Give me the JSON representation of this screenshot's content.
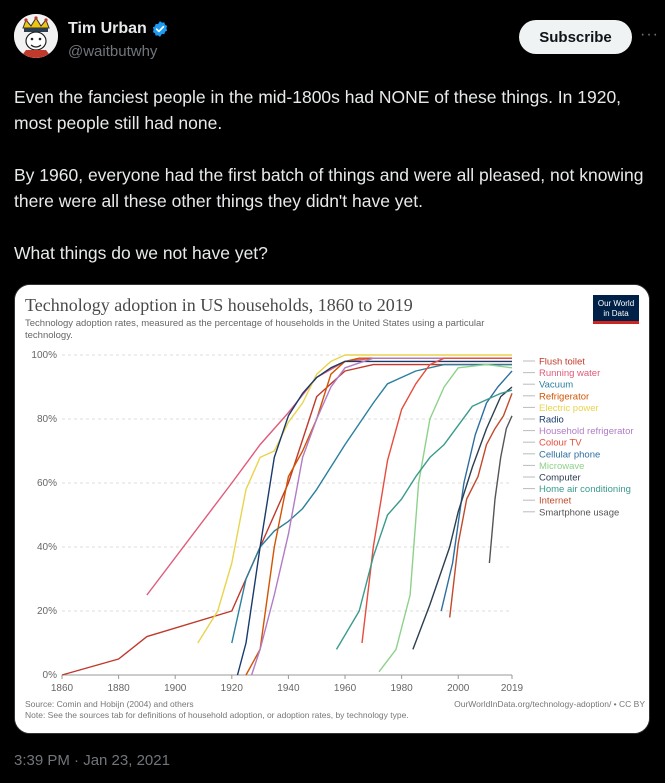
{
  "tweet": {
    "author_name": "Tim Urban",
    "author_handle": "@waitbutwhy",
    "subscribe_label": "Subscribe",
    "more_label": "···",
    "paragraphs": [
      "Even the fanciest people in the mid-1800s had NONE of these things. In 1920, most people still had none.",
      "By 1960, everyone had the first batch of things and were all pleased, not knowing there were all these other things they didn't have yet.",
      "What things do we not have yet?"
    ],
    "timestamp": "3:39 PM · Jan 23, 2021",
    "verified_color": "#1d9bf0"
  },
  "chart_data": {
    "type": "line",
    "title": "Technology adoption in US households, 1860 to 2019",
    "subtitle_lines": [
      "Technology adoption rates, measured as the percentage of households in the United States using a particular",
      "technology."
    ],
    "logo_lines": [
      "Our World",
      "in Data"
    ],
    "xlim": [
      1860,
      2019
    ],
    "ylim": [
      0,
      100
    ],
    "x_ticks": [
      "1860",
      "1880",
      "1900",
      "1920",
      "1940",
      "1960",
      "1980",
      "2000",
      "2019"
    ],
    "x_tick_values": [
      1860,
      1880,
      1900,
      1920,
      1940,
      1960,
      1980,
      2000,
      2019
    ],
    "y_ticks": [
      "0%",
      "20%",
      "40%",
      "60%",
      "80%",
      "100%"
    ],
    "y_tick_values": [
      0,
      20,
      40,
      60,
      80,
      100
    ],
    "source_left": "Source: Comin and Hobijn (2004) and others",
    "source_right": "OurWorldInData.org/technology-adoption/ • CC BY",
    "note": "Note: See the sources tab for definitions of household adoption, or adoption rates, by technology type.",
    "series": [
      {
        "name": "Flush toilet",
        "color": "#c0392b",
        "points": [
          [
            1860,
            0
          ],
          [
            1880,
            5
          ],
          [
            1890,
            12
          ],
          [
            1920,
            20
          ],
          [
            1940,
            60
          ],
          [
            1950,
            87
          ],
          [
            1960,
            95
          ],
          [
            1970,
            97
          ],
          [
            2019,
            97
          ]
        ]
      },
      {
        "name": "Running water",
        "color": "#e05a7a",
        "points": [
          [
            1890,
            25
          ],
          [
            1920,
            60
          ],
          [
            1930,
            72
          ],
          [
            1940,
            82
          ],
          [
            1950,
            93
          ],
          [
            1960,
            98
          ],
          [
            1970,
            99
          ],
          [
            2019,
            99
          ]
        ]
      },
      {
        "name": "Vacuum",
        "color": "#2a7f9e",
        "points": [
          [
            1920,
            10
          ],
          [
            1925,
            30
          ],
          [
            1930,
            40
          ],
          [
            1935,
            45
          ],
          [
            1940,
            48
          ],
          [
            1945,
            52
          ],
          [
            1950,
            58
          ],
          [
            1960,
            72
          ],
          [
            1970,
            85
          ],
          [
            1975,
            91
          ],
          [
            1985,
            95
          ],
          [
            1995,
            97
          ],
          [
            2019,
            97
          ]
        ]
      },
      {
        "name": "Refrigerator",
        "color": "#d35400",
        "points": [
          [
            1925,
            0
          ],
          [
            1930,
            8
          ],
          [
            1935,
            40
          ],
          [
            1940,
            62
          ],
          [
            1945,
            70
          ],
          [
            1950,
            80
          ],
          [
            1955,
            94
          ],
          [
            1960,
            98
          ],
          [
            1965,
            99
          ],
          [
            2019,
            99
          ]
        ]
      },
      {
        "name": "Electric power",
        "color": "#e8d44d",
        "points": [
          [
            1908,
            10
          ],
          [
            1915,
            20
          ],
          [
            1920,
            35
          ],
          [
            1925,
            58
          ],
          [
            1930,
            68
          ],
          [
            1935,
            70
          ],
          [
            1940,
            79
          ],
          [
            1945,
            85
          ],
          [
            1950,
            94
          ],
          [
            1955,
            98
          ],
          [
            1960,
            100
          ],
          [
            2019,
            100
          ]
        ]
      },
      {
        "name": "Radio",
        "color": "#1a3a6b",
        "points": [
          [
            1922,
            0
          ],
          [
            1925,
            10
          ],
          [
            1928,
            28
          ],
          [
            1930,
            40
          ],
          [
            1935,
            68
          ],
          [
            1940,
            81
          ],
          [
            1945,
            88
          ],
          [
            1950,
            93
          ],
          [
            1955,
            96
          ],
          [
            1960,
            98
          ],
          [
            2019,
            98
          ]
        ]
      },
      {
        "name": "Household refrigerator",
        "color": "#b07cc6",
        "points": [
          [
            1927,
            0
          ],
          [
            1930,
            8
          ],
          [
            1935,
            25
          ],
          [
            1940,
            44
          ],
          [
            1945,
            68
          ],
          [
            1950,
            80
          ],
          [
            1955,
            90
          ],
          [
            1960,
            96
          ],
          [
            1970,
            99
          ],
          [
            2019,
            99
          ]
        ]
      },
      {
        "name": "Colour TV",
        "color": "#e74c3c",
        "points": [
          [
            1966,
            10
          ],
          [
            1970,
            40
          ],
          [
            1975,
            67
          ],
          [
            1980,
            83
          ],
          [
            1985,
            91
          ],
          [
            1990,
            97
          ],
          [
            1995,
            99
          ],
          [
            2019,
            99
          ]
        ]
      },
      {
        "name": "Cellular phone",
        "color": "#2c6ea0",
        "points": [
          [
            1994,
            20
          ],
          [
            1998,
            35
          ],
          [
            2002,
            60
          ],
          [
            2006,
            75
          ],
          [
            2010,
            85
          ],
          [
            2014,
            90
          ],
          [
            2019,
            95
          ]
        ]
      },
      {
        "name": "Microwave",
        "color": "#8ed18a",
        "points": [
          [
            1972,
            1
          ],
          [
            1978,
            8
          ],
          [
            1983,
            25
          ],
          [
            1986,
            60
          ],
          [
            1990,
            80
          ],
          [
            1995,
            90
          ],
          [
            2000,
            96
          ],
          [
            2010,
            97
          ],
          [
            2019,
            96
          ]
        ]
      },
      {
        "name": "Computer",
        "color": "#2c3e50",
        "points": [
          [
            1984,
            8
          ],
          [
            1990,
            22
          ],
          [
            1997,
            40
          ],
          [
            2000,
            51
          ],
          [
            2005,
            65
          ],
          [
            2010,
            77
          ],
          [
            2015,
            87
          ],
          [
            2019,
            90
          ]
        ]
      },
      {
        "name": "Home air conditioning",
        "color": "#3a9a8c",
        "points": [
          [
            1957,
            8
          ],
          [
            1965,
            20
          ],
          [
            1970,
            37
          ],
          [
            1975,
            50
          ],
          [
            1980,
            55
          ],
          [
            1985,
            62
          ],
          [
            1990,
            68
          ],
          [
            1995,
            72
          ],
          [
            2000,
            78
          ],
          [
            2005,
            84
          ],
          [
            2010,
            86
          ],
          [
            2015,
            88
          ],
          [
            2019,
            89
          ]
        ]
      },
      {
        "name": "Internet",
        "color": "#c04a2a",
        "points": [
          [
            1997,
            18
          ],
          [
            2000,
            41
          ],
          [
            2003,
            55
          ],
          [
            2007,
            62
          ],
          [
            2010,
            72
          ],
          [
            2013,
            77
          ],
          [
            2016,
            81
          ],
          [
            2019,
            88
          ]
        ]
      },
      {
        "name": "Smartphone usage",
        "color": "#555555",
        "points": [
          [
            2011,
            35
          ],
          [
            2013,
            55
          ],
          [
            2015,
            68
          ],
          [
            2017,
            77
          ],
          [
            2019,
            81
          ]
        ]
      }
    ]
  }
}
